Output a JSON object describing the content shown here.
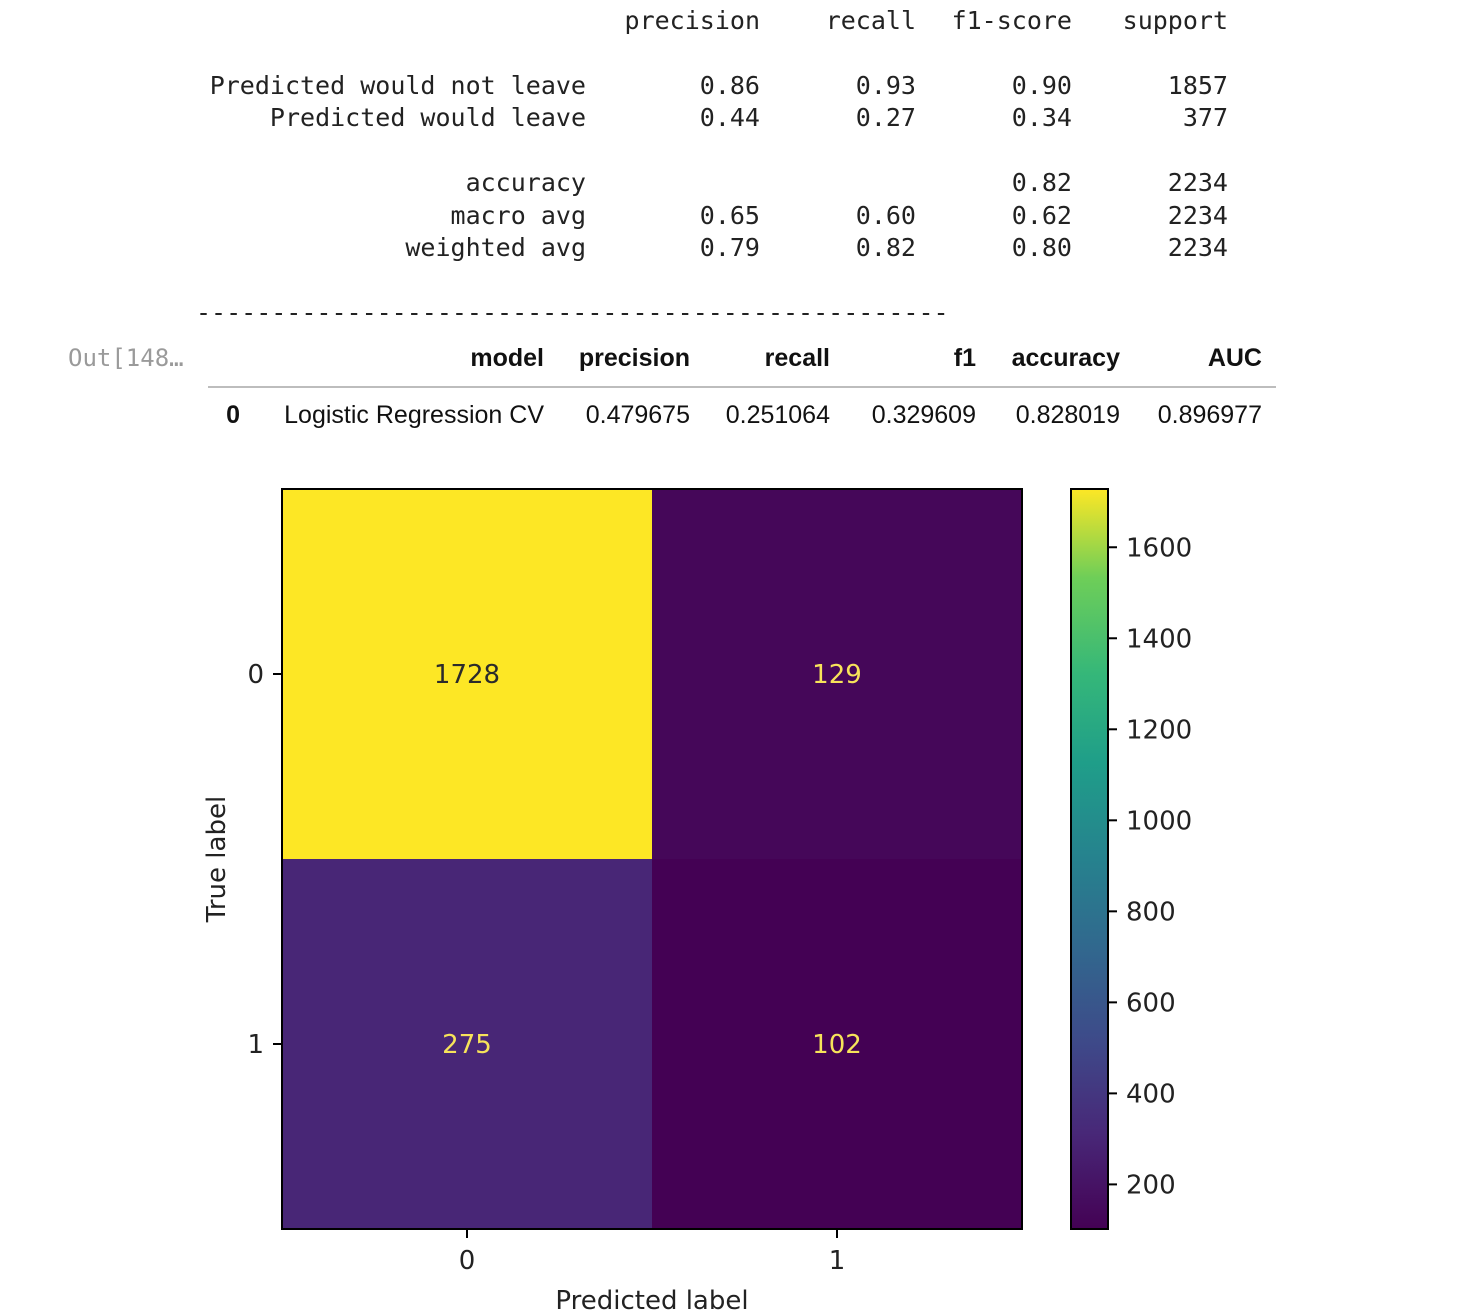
{
  "report": {
    "columns": [
      "precision",
      "recall",
      "f1-score",
      "support"
    ],
    "rows": [
      {
        "label": "Predicted would not leave",
        "precision": "0.86",
        "recall": "0.93",
        "f1": "0.90",
        "support": "1857"
      },
      {
        "label": "Predicted would leave",
        "precision": "0.44",
        "recall": "0.27",
        "f1": "0.34",
        "support": "377"
      },
      {
        "label": "accuracy",
        "precision": "",
        "recall": "",
        "f1": "0.82",
        "support": "2234"
      },
      {
        "label": "macro avg",
        "precision": "0.65",
        "recall": "0.60",
        "f1": "0.62",
        "support": "2234"
      },
      {
        "label": "weighted avg",
        "precision": "0.79",
        "recall": "0.82",
        "f1": "0.80",
        "support": "2234"
      }
    ],
    "rule": "--------------------------------------------------"
  },
  "prompt": "Out[148…",
  "dataframe": {
    "columns": [
      "model",
      "precision",
      "recall",
      "f1",
      "accuracy",
      "AUC"
    ],
    "rows": [
      {
        "index": "0",
        "model": "Logistic Regression CV",
        "precision": "0.479675",
        "recall": "0.251064",
        "f1": "0.329609",
        "accuracy": "0.828019",
        "AUC": "0.896977"
      }
    ]
  },
  "chart_data": {
    "type": "heatmap",
    "title": "",
    "xlabel": "Predicted label",
    "ylabel": "True label",
    "x_categories": [
      "0",
      "1"
    ],
    "y_categories": [
      "0",
      "1"
    ],
    "values": [
      [
        1728,
        129
      ],
      [
        275,
        102
      ]
    ],
    "colormap": "viridis",
    "colorbar": {
      "min": 102,
      "max": 1728,
      "ticks": [
        200,
        400,
        600,
        800,
        1000,
        1200,
        1400,
        1600
      ]
    },
    "cell_text_colors": {
      "dark_on_light": "#2b2b2b",
      "light_on_dark": "#f7e35a"
    }
  }
}
